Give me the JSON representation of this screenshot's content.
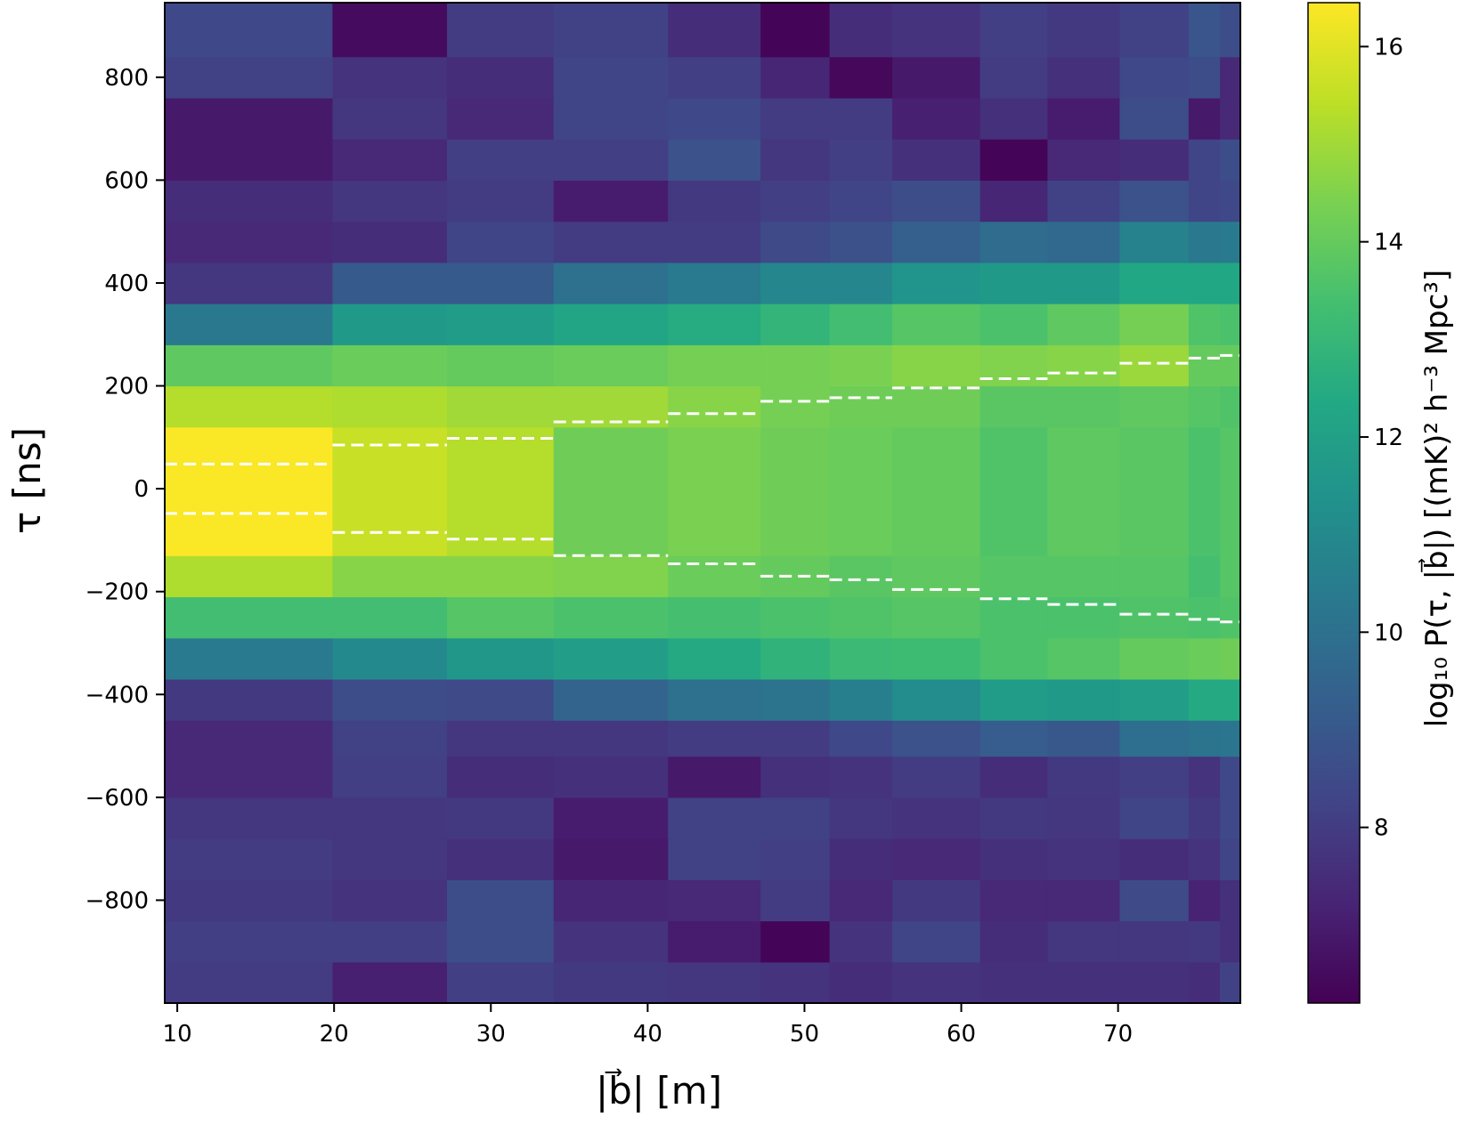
{
  "chart_data": {
    "type": "heatmap",
    "title": "",
    "xlabel": "|b⃗| [m]",
    "ylabel": "τ [ns]",
    "colorbar_label": "log₁₀ P(τ, |b⃗|) [(mK)² h⁻³ Mpc³]",
    "colormap": "viridis",
    "clim": [
      6.2,
      16.45
    ],
    "xlim": [
      9.2,
      77.8
    ],
    "ylim": [
      -1000,
      945
    ],
    "x_edges": [
      9.2,
      19.9,
      27.2,
      34.0,
      41.3,
      47.2,
      51.6,
      55.6,
      61.2,
      65.5,
      70.1,
      74.5,
      76.5,
      77.8
    ],
    "y_edges": [
      -1000,
      -920,
      -840,
      -760,
      -680,
      -600,
      -520,
      -450,
      -370,
      -290,
      -210,
      -130,
      120,
      200,
      280,
      360,
      440,
      520,
      600,
      680,
      760,
      840,
      945
    ],
    "values": [
      [
        8.0,
        7.1,
        8.1,
        7.9,
        7.8,
        7.7,
        7.5,
        7.7,
        7.6,
        7.6,
        7.6,
        7.5,
        8.2
      ],
      [
        8.1,
        8.1,
        8.6,
        7.7,
        7.0,
        6.3,
        7.7,
        8.3,
        7.5,
        7.8,
        7.8,
        7.9,
        7.6
      ],
      [
        7.9,
        7.7,
        8.6,
        7.3,
        7.4,
        8.0,
        7.4,
        7.9,
        7.4,
        7.4,
        8.5,
        7.2,
        7.6
      ],
      [
        8.0,
        7.8,
        7.6,
        6.9,
        8.2,
        8.1,
        7.5,
        7.4,
        7.6,
        7.7,
        7.5,
        7.7,
        8.3
      ],
      [
        7.8,
        7.8,
        7.9,
        7.0,
        8.2,
        8.2,
        7.8,
        7.7,
        7.9,
        7.8,
        8.3,
        7.9,
        8.4
      ],
      [
        7.4,
        8.1,
        7.5,
        7.6,
        6.9,
        7.6,
        7.7,
        8.0,
        7.5,
        7.9,
        8.1,
        7.7,
        8.4
      ],
      [
        7.4,
        8.2,
        7.8,
        7.8,
        8.0,
        8.0,
        8.4,
        8.8,
        9.2,
        9.0,
        9.9,
        10.1,
        10.2
      ],
      [
        7.9,
        8.6,
        8.5,
        9.5,
        10.0,
        10.1,
        10.6,
        11.1,
        11.8,
        11.7,
        11.9,
        12.4,
        12.4
      ],
      [
        10.4,
        11.0,
        11.6,
        11.9,
        12.4,
        12.8,
        13.1,
        13.2,
        13.5,
        13.7,
        14.0,
        14.1,
        14.2
      ],
      [
        13.3,
        13.3,
        13.7,
        13.5,
        13.4,
        13.5,
        13.6,
        13.7,
        13.5,
        13.5,
        13.6,
        13.5,
        13.6
      ],
      [
        15.2,
        14.6,
        14.6,
        14.5,
        14.1,
        14.0,
        13.8,
        13.9,
        13.7,
        13.7,
        13.7,
        13.4,
        13.7
      ],
      [
        16.4,
        15.6,
        15.3,
        14.2,
        14.4,
        14.2,
        14.1,
        14.0,
        13.6,
        13.9,
        13.8,
        13.5,
        13.7
      ],
      [
        15.3,
        15.2,
        15.0,
        15.0,
        14.6,
        14.3,
        14.2,
        14.2,
        13.8,
        13.8,
        13.9,
        13.7,
        13.6
      ],
      [
        13.9,
        14.1,
        14.0,
        14.1,
        14.3,
        14.3,
        14.4,
        14.6,
        14.5,
        14.6,
        14.9,
        14.0,
        14.0
      ],
      [
        10.3,
        11.7,
        11.8,
        12.2,
        12.5,
        12.9,
        13.3,
        13.7,
        13.5,
        13.9,
        14.3,
        13.6,
        13.5
      ],
      [
        7.8,
        9.1,
        9.1,
        10.0,
        10.4,
        10.9,
        10.9,
        11.5,
        11.7,
        11.7,
        12.3,
        12.3,
        12.3
      ],
      [
        7.4,
        7.5,
        8.3,
        8.0,
        8.0,
        8.5,
        8.7,
        9.3,
        9.8,
        9.7,
        10.7,
        10.3,
        10.4
      ],
      [
        7.5,
        7.8,
        8.0,
        7.0,
        7.9,
        8.1,
        8.3,
        8.6,
        7.3,
        8.2,
        8.8,
        8.3,
        8.4
      ],
      [
        6.9,
        7.4,
        8.1,
        8.1,
        8.8,
        7.8,
        8.1,
        7.6,
        6.3,
        7.4,
        7.5,
        8.3,
        8.6
      ],
      [
        6.9,
        7.8,
        7.4,
        8.3,
        8.4,
        8.0,
        8.0,
        7.1,
        7.6,
        7.0,
        8.6,
        6.9,
        7.4
      ],
      [
        8.2,
        7.7,
        7.5,
        8.3,
        8.1,
        7.3,
        6.4,
        6.9,
        8.0,
        7.6,
        8.4,
        8.6,
        7.4
      ],
      [
        8.4,
        6.5,
        8.0,
        8.2,
        7.5,
        6.3,
        7.5,
        7.7,
        8.1,
        7.9,
        8.2,
        8.9,
        8.6
      ]
    ],
    "horizon_lines": [
      {
        "x": [
          9.2,
          19.9
        ],
        "tau": 48
      },
      {
        "x": [
          19.9,
          27.2
        ],
        "tau": 85
      },
      {
        "x": [
          27.2,
          34.0
        ],
        "tau": 98
      },
      {
        "x": [
          34.0,
          41.3
        ],
        "tau": 130
      },
      {
        "x": [
          41.3,
          47.2
        ],
        "tau": 146
      },
      {
        "x": [
          47.2,
          51.6
        ],
        "tau": 170
      },
      {
        "x": [
          51.6,
          55.6
        ],
        "tau": 177
      },
      {
        "x": [
          55.6,
          61.2
        ],
        "tau": 196
      },
      {
        "x": [
          61.2,
          65.5
        ],
        "tau": 214
      },
      {
        "x": [
          65.5,
          70.1
        ],
        "tau": 225
      },
      {
        "x": [
          70.1,
          74.5
        ],
        "tau": 244
      },
      {
        "x": [
          74.5,
          76.5
        ],
        "tau": 254
      },
      {
        "x": [
          76.5,
          77.8
        ],
        "tau": 259
      }
    ],
    "x_ticks": [
      10,
      20,
      30,
      40,
      50,
      60,
      70
    ],
    "y_ticks": [
      -800,
      -600,
      -400,
      -200,
      0,
      200,
      400,
      600,
      800
    ],
    "colorbar_ticks": [
      8,
      10,
      12,
      14,
      16
    ],
    "grid": false,
    "legend": "none"
  }
}
